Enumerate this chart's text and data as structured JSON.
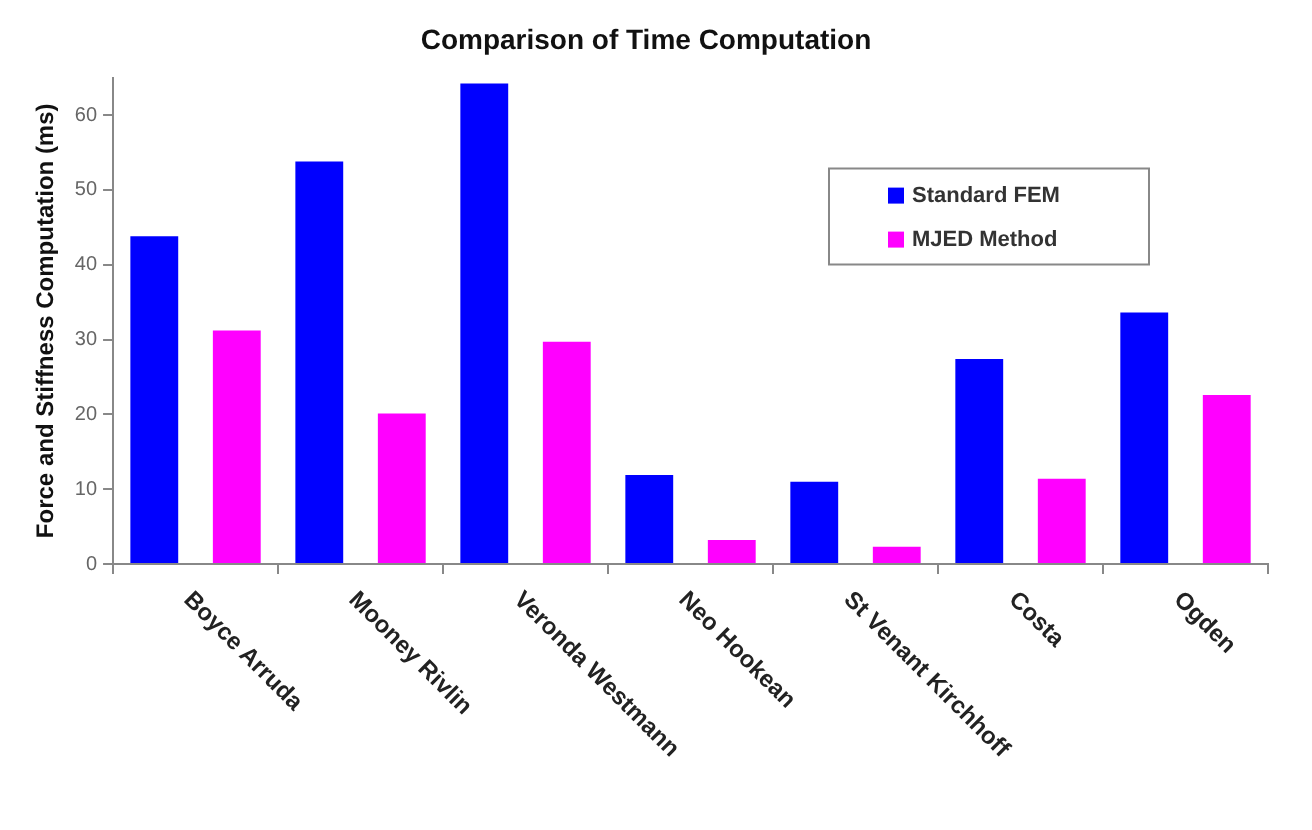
{
  "chart_data": {
    "type": "bar",
    "title": "Comparison of Time Computation",
    "ylabel": "Force and Stiffness Computation (ms)",
    "categories": [
      "Boyce Arruda",
      "Mooney Rivlin",
      "Veronda Westmann",
      "Neo Hookean",
      "St Venant Kirchhoff",
      "Costa",
      "Ogden"
    ],
    "series": [
      {
        "name": "Standard FEM",
        "color": "#0000ff",
        "values": [
          43.8,
          53.8,
          64.2,
          11.9,
          11.0,
          27.4,
          33.6
        ]
      },
      {
        "name": "MJED Method",
        "color": "#ff00ff",
        "values": [
          31.2,
          20.1,
          29.7,
          3.2,
          2.3,
          11.4,
          22.6
        ]
      }
    ],
    "ylim": [
      0,
      65
    ],
    "yticks": [
      0,
      10,
      20,
      30,
      40,
      50,
      60
    ],
    "grid": false,
    "legend": "top right"
  }
}
